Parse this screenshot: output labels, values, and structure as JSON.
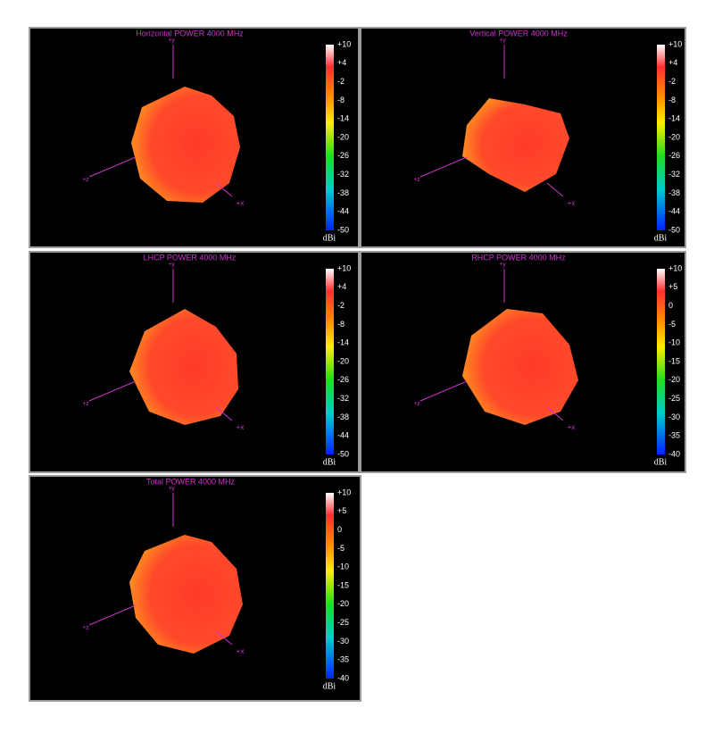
{
  "panels": [
    {
      "title": "Horizontal POWER 4000  MHz",
      "axes": {
        "y": "+y",
        "z": "+z",
        "x": "+x"
      },
      "colorbar": {
        "ticks": [
          "+10",
          "+4",
          "-2",
          "-8",
          "-14",
          "-20",
          "-26",
          "-32",
          "-38",
          "-44",
          "-50"
        ],
        "unit": "dBi"
      }
    },
    {
      "title": "Vertical POWER 4000  MHz",
      "axes": {
        "y": "+y",
        "z": "+z",
        "x": "+x"
      },
      "colorbar": {
        "ticks": [
          "+10",
          "+4",
          "-2",
          "-8",
          "-14",
          "-20",
          "-26",
          "-32",
          "-38",
          "-44",
          "-50"
        ],
        "unit": "dBi"
      }
    },
    {
      "title": "LHCP POWER 4000  MHz",
      "axes": {
        "y": "+y",
        "z": "+z",
        "x": "+x"
      },
      "colorbar": {
        "ticks": [
          "+10",
          "+4",
          "-2",
          "-8",
          "-14",
          "-20",
          "-26",
          "-32",
          "-38",
          "-44",
          "-50"
        ],
        "unit": "dBi"
      }
    },
    {
      "title": "RHCP POWER 4000  MHz",
      "axes": {
        "y": "+y",
        "z": "+z",
        "x": "+x"
      },
      "colorbar": {
        "ticks": [
          "+10",
          "+5",
          "0",
          "-5",
          "-10",
          "-15",
          "-20",
          "-25",
          "-30",
          "-35",
          "-40"
        ],
        "unit": "dBi"
      }
    },
    {
      "title": "Total POWER 4000  MHz",
      "axes": {
        "y": "+y",
        "z": "+z",
        "x": "+x"
      },
      "colorbar": {
        "ticks": [
          "+10",
          "+5",
          "0",
          "-5",
          "-10",
          "-15",
          "-20",
          "-25",
          "-30",
          "-35",
          "-40"
        ],
        "unit": "dBi"
      }
    }
  ]
}
